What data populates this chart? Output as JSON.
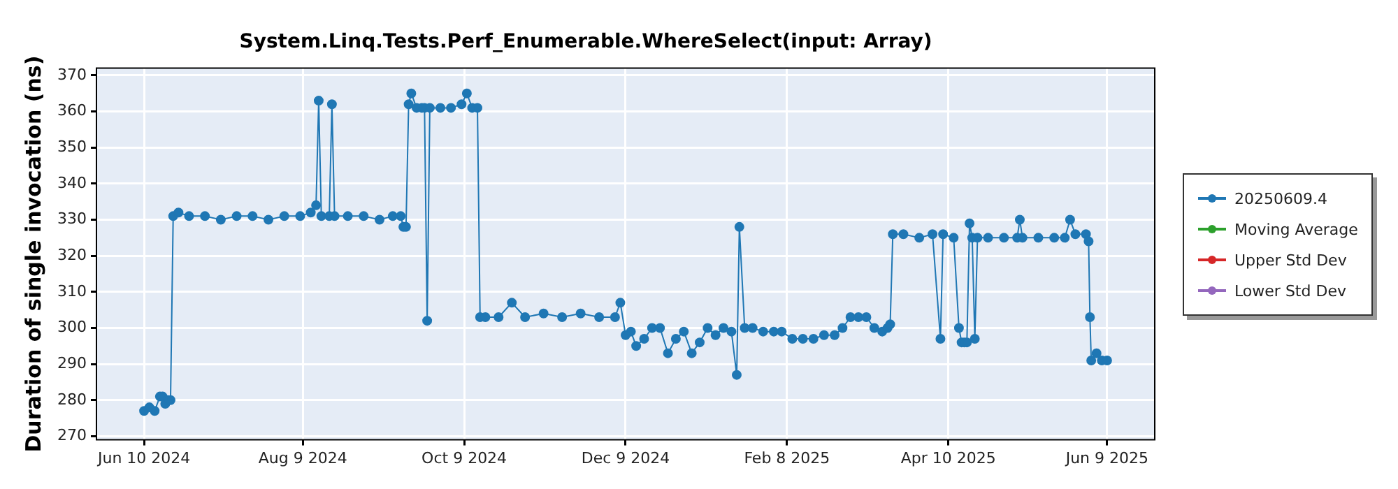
{
  "chart_data": {
    "type": "line",
    "title": "System.Linq.Tests.Perf_Enumerable.WhereSelect(input: Array)",
    "ylabel": "Duration of single invocation (ns)",
    "xlim": [
      "2024-05-23",
      "2025-06-27"
    ],
    "xticks": [
      {
        "value": "2024-06-10",
        "label": "Jun 10 2024"
      },
      {
        "value": "2024-08-09",
        "label": "Aug 9 2024"
      },
      {
        "value": "2024-10-09",
        "label": "Oct 9 2024"
      },
      {
        "value": "2024-12-09",
        "label": "Dec 9 2024"
      },
      {
        "value": "2025-02-08",
        "label": "Feb 8 2025"
      },
      {
        "value": "2025-04-10",
        "label": "Apr 10 2025"
      },
      {
        "value": "2025-06-09",
        "label": "Jun 9 2025"
      }
    ],
    "ylim": [
      269,
      372
    ],
    "yticks": [
      270,
      280,
      290,
      300,
      310,
      320,
      330,
      340,
      350,
      360,
      370
    ],
    "grid": true,
    "legend": "right",
    "marker": "circle",
    "line_style": "solid",
    "series": [
      {
        "name": "20250609.4",
        "color": "#1f77b4",
        "x": [
          "2024-06-10",
          "2024-06-12",
          "2024-06-14",
          "2024-06-16",
          "2024-06-17",
          "2024-06-18",
          "2024-06-19",
          "2024-06-20",
          "2024-06-21",
          "2024-06-23",
          "2024-06-27",
          "2024-07-03",
          "2024-07-09",
          "2024-07-15",
          "2024-07-21",
          "2024-07-27",
          "2024-08-02",
          "2024-08-08",
          "2024-08-12",
          "2024-08-14",
          "2024-08-15",
          "2024-08-16",
          "2024-08-19",
          "2024-08-20",
          "2024-08-21",
          "2024-08-26",
          "2024-09-01",
          "2024-09-07",
          "2024-09-12",
          "2024-09-15",
          "2024-09-16",
          "2024-09-17",
          "2024-09-18",
          "2024-09-19",
          "2024-09-21",
          "2024-09-23",
          "2024-09-24",
          "2024-09-25",
          "2024-09-26",
          "2024-09-30",
          "2024-10-04",
          "2024-10-08",
          "2024-10-10",
          "2024-10-12",
          "2024-10-14",
          "2024-10-15",
          "2024-10-17",
          "2024-10-22",
          "2024-10-27",
          "2024-11-01",
          "2024-11-08",
          "2024-11-15",
          "2024-11-22",
          "2024-11-29",
          "2024-12-05",
          "2024-12-07",
          "2024-12-09",
          "2024-12-11",
          "2024-12-13",
          "2024-12-16",
          "2024-12-19",
          "2024-12-22",
          "2024-12-25",
          "2024-12-28",
          "2024-12-31",
          "2025-01-03",
          "2025-01-06",
          "2025-01-09",
          "2025-01-12",
          "2025-01-15",
          "2025-01-18",
          "2025-01-20",
          "2025-01-21",
          "2025-01-23",
          "2025-01-26",
          "2025-01-30",
          "2025-02-03",
          "2025-02-06",
          "2025-02-10",
          "2025-02-14",
          "2025-02-18",
          "2025-02-22",
          "2025-02-26",
          "2025-03-01",
          "2025-03-04",
          "2025-03-07",
          "2025-03-10",
          "2025-03-13",
          "2025-03-16",
          "2025-03-18",
          "2025-03-19",
          "2025-03-20",
          "2025-03-24",
          "2025-03-30",
          "2025-04-04",
          "2025-04-07",
          "2025-04-08",
          "2025-04-12",
          "2025-04-14",
          "2025-04-15",
          "2025-04-16",
          "2025-04-17",
          "2025-04-18",
          "2025-04-19",
          "2025-04-20",
          "2025-04-21",
          "2025-04-25",
          "2025-05-01",
          "2025-05-06",
          "2025-05-07",
          "2025-05-08",
          "2025-05-14",
          "2025-05-20",
          "2025-05-24",
          "2025-05-26",
          "2025-05-28",
          "2025-06-01",
          "2025-06-02",
          "2025-06-02T12:00",
          "2025-06-03",
          "2025-06-05",
          "2025-06-07",
          "2025-06-09"
        ],
        "values": [
          277,
          278,
          277,
          281,
          281,
          279,
          280,
          280,
          331,
          332,
          331,
          331,
          330,
          331,
          331,
          330,
          331,
          331,
          332,
          334,
          363,
          331,
          331,
          362,
          331,
          331,
          331,
          330,
          331,
          331,
          328,
          328,
          362,
          365,
          361,
          361,
          361,
          302,
          361,
          361,
          361,
          362,
          365,
          361,
          361,
          303,
          303,
          303,
          307,
          303,
          304,
          303,
          304,
          303,
          303,
          307,
          298,
          299,
          295,
          297,
          300,
          300,
          293,
          297,
          299,
          293,
          296,
          300,
          298,
          300,
          299,
          287,
          328,
          300,
          300,
          299,
          299,
          299,
          297,
          297,
          297,
          298,
          298,
          300,
          303,
          303,
          303,
          300,
          299,
          300,
          301,
          326,
          326,
          325,
          326,
          297,
          326,
          325,
          300,
          296,
          296,
          296,
          329,
          325,
          297,
          325,
          325,
          325,
          325,
          330,
          325,
          325,
          325,
          325,
          330,
          326,
          326,
          324,
          303,
          291,
          293,
          291,
          291
        ]
      },
      {
        "name": "Moving Average",
        "color": "#2ca02c"
      },
      {
        "name": "Upper Std Dev",
        "color": "#d62728"
      },
      {
        "name": "Lower Std Dev",
        "color": "#9467bd"
      }
    ]
  }
}
